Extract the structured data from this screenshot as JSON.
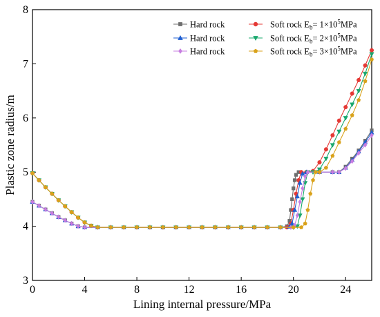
{
  "chart_data": {
    "type": "line",
    "xlabel": "Lining internal pressure/MPa",
    "ylabel": "Plastic zone radius/m",
    "xlim": [
      0,
      26
    ],
    "ylim": [
      3,
      8
    ],
    "xticks": [
      0,
      4,
      8,
      12,
      16,
      20,
      24
    ],
    "yticks": [
      3,
      4,
      5,
      6,
      7,
      8
    ],
    "grid": false,
    "legend_position": "top-right",
    "series": [
      {
        "name": "Hard rock",
        "color": "#6e6e6e",
        "marker": "square",
        "points": [
          [
            0,
            4.45
          ],
          [
            0.5,
            4.38
          ],
          [
            1,
            4.31
          ],
          [
            1.5,
            4.24
          ],
          [
            2,
            4.17
          ],
          [
            2.5,
            4.11
          ],
          [
            3,
            4.05
          ],
          [
            3.5,
            4.0
          ],
          [
            4,
            3.98
          ],
          [
            5,
            3.98
          ],
          [
            6,
            3.98
          ],
          [
            7,
            3.98
          ],
          [
            8,
            3.98
          ],
          [
            9,
            3.98
          ],
          [
            10,
            3.98
          ],
          [
            11,
            3.98
          ],
          [
            12,
            3.98
          ],
          [
            13,
            3.98
          ],
          [
            14,
            3.98
          ],
          [
            15,
            3.98
          ],
          [
            16,
            3.98
          ],
          [
            17,
            3.98
          ],
          [
            18,
            3.98
          ],
          [
            19,
            3.98
          ],
          [
            19.5,
            4.0
          ],
          [
            19.7,
            4.1
          ],
          [
            19.8,
            4.3
          ],
          [
            19.9,
            4.5
          ],
          [
            20,
            4.7
          ],
          [
            20.1,
            4.85
          ],
          [
            20.2,
            4.95
          ],
          [
            20.4,
            5.0
          ],
          [
            21,
            5.0
          ],
          [
            22,
            5.0
          ],
          [
            23,
            5.0
          ],
          [
            23.5,
            5.0
          ],
          [
            24,
            5.1
          ],
          [
            24.5,
            5.25
          ],
          [
            25,
            5.4
          ],
          [
            25.5,
            5.58
          ],
          [
            26,
            5.77
          ]
        ]
      },
      {
        "name": "Soft rock E_b= 1×10^5MPa",
        "label_main": "Soft rock E",
        "label_sub": "b",
        "label_mid": "= 1×10",
        "label_sup": "5",
        "label_end": "MPa",
        "color": "#e53935",
        "marker": "circle",
        "points": [
          [
            0,
            4.98
          ],
          [
            0.5,
            4.85
          ],
          [
            1,
            4.72
          ],
          [
            1.5,
            4.6
          ],
          [
            2,
            4.48
          ],
          [
            2.5,
            4.37
          ],
          [
            3,
            4.26
          ],
          [
            3.5,
            4.16
          ],
          [
            4,
            4.07
          ],
          [
            4.5,
            4.01
          ],
          [
            5,
            3.98
          ],
          [
            6,
            3.98
          ],
          [
            7,
            3.98
          ],
          [
            8,
            3.98
          ],
          [
            9,
            3.98
          ],
          [
            10,
            3.98
          ],
          [
            11,
            3.98
          ],
          [
            12,
            3.98
          ],
          [
            13,
            3.98
          ],
          [
            14,
            3.98
          ],
          [
            15,
            3.98
          ],
          [
            16,
            3.98
          ],
          [
            17,
            3.98
          ],
          [
            18,
            3.98
          ],
          [
            19,
            3.98
          ],
          [
            19.5,
            3.98
          ],
          [
            19.8,
            4.05
          ],
          [
            20,
            4.3
          ],
          [
            20.2,
            4.6
          ],
          [
            20.4,
            4.85
          ],
          [
            20.6,
            5.0
          ],
          [
            21,
            5.0
          ],
          [
            21.5,
            5.02
          ],
          [
            22,
            5.18
          ],
          [
            22.5,
            5.42
          ],
          [
            23,
            5.68
          ],
          [
            23.5,
            5.95
          ],
          [
            24,
            6.2
          ],
          [
            24.5,
            6.45
          ],
          [
            25,
            6.7
          ],
          [
            25.5,
            6.97
          ],
          [
            26,
            7.25
          ]
        ]
      },
      {
        "name": "Hard rock",
        "color": "#1f5fd1",
        "marker": "triangle-up",
        "points": [
          [
            0,
            4.45
          ],
          [
            0.5,
            4.38
          ],
          [
            1,
            4.31
          ],
          [
            1.5,
            4.24
          ],
          [
            2,
            4.17
          ],
          [
            2.5,
            4.11
          ],
          [
            3,
            4.05
          ],
          [
            3.5,
            4.0
          ],
          [
            4,
            3.98
          ],
          [
            5,
            3.98
          ],
          [
            6,
            3.98
          ],
          [
            7,
            3.98
          ],
          [
            8,
            3.98
          ],
          [
            9,
            3.98
          ],
          [
            10,
            3.98
          ],
          [
            11,
            3.98
          ],
          [
            12,
            3.98
          ],
          [
            13,
            3.98
          ],
          [
            14,
            3.98
          ],
          [
            15,
            3.98
          ],
          [
            16,
            3.98
          ],
          [
            17,
            3.98
          ],
          [
            18,
            3.98
          ],
          [
            19,
            3.98
          ],
          [
            19.7,
            3.99
          ],
          [
            19.9,
            4.05
          ],
          [
            20.1,
            4.3
          ],
          [
            20.3,
            4.55
          ],
          [
            20.5,
            4.8
          ],
          [
            20.7,
            4.97
          ],
          [
            21,
            5.0
          ],
          [
            22,
            5.0
          ],
          [
            23,
            5.0
          ],
          [
            23.5,
            5.0
          ],
          [
            24,
            5.08
          ],
          [
            24.5,
            5.22
          ],
          [
            25,
            5.38
          ],
          [
            25.5,
            5.55
          ],
          [
            26,
            5.73
          ]
        ]
      },
      {
        "name": "Soft rock E_b= 2×10^5MPa",
        "label_main": "Soft rock E",
        "label_sub": "b",
        "label_mid": "= 2×10",
        "label_sup": "5",
        "label_end": "MPa",
        "color": "#1aa86e",
        "marker": "triangle-down",
        "points": [
          [
            0,
            4.98
          ],
          [
            0.5,
            4.85
          ],
          [
            1,
            4.72
          ],
          [
            1.5,
            4.6
          ],
          [
            2,
            4.48
          ],
          [
            2.5,
            4.37
          ],
          [
            3,
            4.26
          ],
          [
            3.5,
            4.16
          ],
          [
            4,
            4.07
          ],
          [
            4.5,
            4.01
          ],
          [
            5,
            3.98
          ],
          [
            6,
            3.98
          ],
          [
            7,
            3.98
          ],
          [
            8,
            3.98
          ],
          [
            9,
            3.98
          ],
          [
            10,
            3.98
          ],
          [
            11,
            3.98
          ],
          [
            12,
            3.98
          ],
          [
            13,
            3.98
          ],
          [
            14,
            3.98
          ],
          [
            15,
            3.98
          ],
          [
            16,
            3.98
          ],
          [
            17,
            3.98
          ],
          [
            18,
            3.98
          ],
          [
            19,
            3.98
          ],
          [
            20,
            3.98
          ],
          [
            20.3,
            4.0
          ],
          [
            20.5,
            4.2
          ],
          [
            20.7,
            4.5
          ],
          [
            20.9,
            4.8
          ],
          [
            21.1,
            5.0
          ],
          [
            21.5,
            5.0
          ],
          [
            22,
            5.05
          ],
          [
            22.5,
            5.25
          ],
          [
            23,
            5.5
          ],
          [
            23.5,
            5.75
          ],
          [
            24,
            6.0
          ],
          [
            24.5,
            6.25
          ],
          [
            25,
            6.5
          ],
          [
            25.5,
            6.82
          ],
          [
            26,
            7.18
          ]
        ]
      },
      {
        "name": "Hard rock",
        "color": "#c77de0",
        "marker": "diamond",
        "points": [
          [
            0,
            4.45
          ],
          [
            0.5,
            4.38
          ],
          [
            1,
            4.31
          ],
          [
            1.5,
            4.24
          ],
          [
            2,
            4.17
          ],
          [
            2.5,
            4.11
          ],
          [
            3,
            4.05
          ],
          [
            3.5,
            4.0
          ],
          [
            4,
            3.98
          ],
          [
            5,
            3.98
          ],
          [
            6,
            3.98
          ],
          [
            7,
            3.98
          ],
          [
            8,
            3.98
          ],
          [
            9,
            3.98
          ],
          [
            10,
            3.98
          ],
          [
            11,
            3.98
          ],
          [
            12,
            3.98
          ],
          [
            13,
            3.98
          ],
          [
            14,
            3.98
          ],
          [
            15,
            3.98
          ],
          [
            16,
            3.98
          ],
          [
            17,
            3.98
          ],
          [
            18,
            3.98
          ],
          [
            19,
            3.98
          ],
          [
            19.8,
            3.98
          ],
          [
            20.1,
            4.02
          ],
          [
            20.3,
            4.2
          ],
          [
            20.5,
            4.45
          ],
          [
            20.7,
            4.7
          ],
          [
            20.9,
            4.92
          ],
          [
            21.1,
            5.0
          ],
          [
            22,
            5.0
          ],
          [
            23,
            5.0
          ],
          [
            23.5,
            5.0
          ],
          [
            24,
            5.07
          ],
          [
            24.5,
            5.2
          ],
          [
            25,
            5.35
          ],
          [
            25.5,
            5.5
          ],
          [
            26,
            5.68
          ]
        ]
      },
      {
        "name": "Soft rock E_b= 3×10^5MPa",
        "label_main": "Soft rock E",
        "label_sub": "b",
        "label_mid": "= 3×10",
        "label_sup": "5",
        "label_end": "MPa",
        "color": "#d9a21b",
        "marker": "pentagon",
        "points": [
          [
            0,
            4.98
          ],
          [
            0.5,
            4.85
          ],
          [
            1,
            4.72
          ],
          [
            1.5,
            4.6
          ],
          [
            2,
            4.48
          ],
          [
            2.5,
            4.37
          ],
          [
            3,
            4.26
          ],
          [
            3.5,
            4.16
          ],
          [
            4,
            4.07
          ],
          [
            4.5,
            4.01
          ],
          [
            5,
            3.98
          ],
          [
            6,
            3.98
          ],
          [
            7,
            3.98
          ],
          [
            8,
            3.98
          ],
          [
            9,
            3.98
          ],
          [
            10,
            3.98
          ],
          [
            11,
            3.98
          ],
          [
            12,
            3.98
          ],
          [
            13,
            3.98
          ],
          [
            14,
            3.98
          ],
          [
            15,
            3.98
          ],
          [
            16,
            3.98
          ],
          [
            17,
            3.98
          ],
          [
            18,
            3.98
          ],
          [
            19,
            3.98
          ],
          [
            20,
            3.98
          ],
          [
            20.6,
            3.98
          ],
          [
            20.9,
            4.05
          ],
          [
            21.1,
            4.3
          ],
          [
            21.3,
            4.6
          ],
          [
            21.5,
            4.85
          ],
          [
            21.7,
            5.0
          ],
          [
            22,
            5.0
          ],
          [
            22.5,
            5.08
          ],
          [
            23,
            5.3
          ],
          [
            23.5,
            5.55
          ],
          [
            24,
            5.8
          ],
          [
            24.5,
            6.05
          ],
          [
            25,
            6.33
          ],
          [
            25.5,
            6.68
          ],
          [
            26,
            7.08
          ]
        ]
      }
    ]
  }
}
